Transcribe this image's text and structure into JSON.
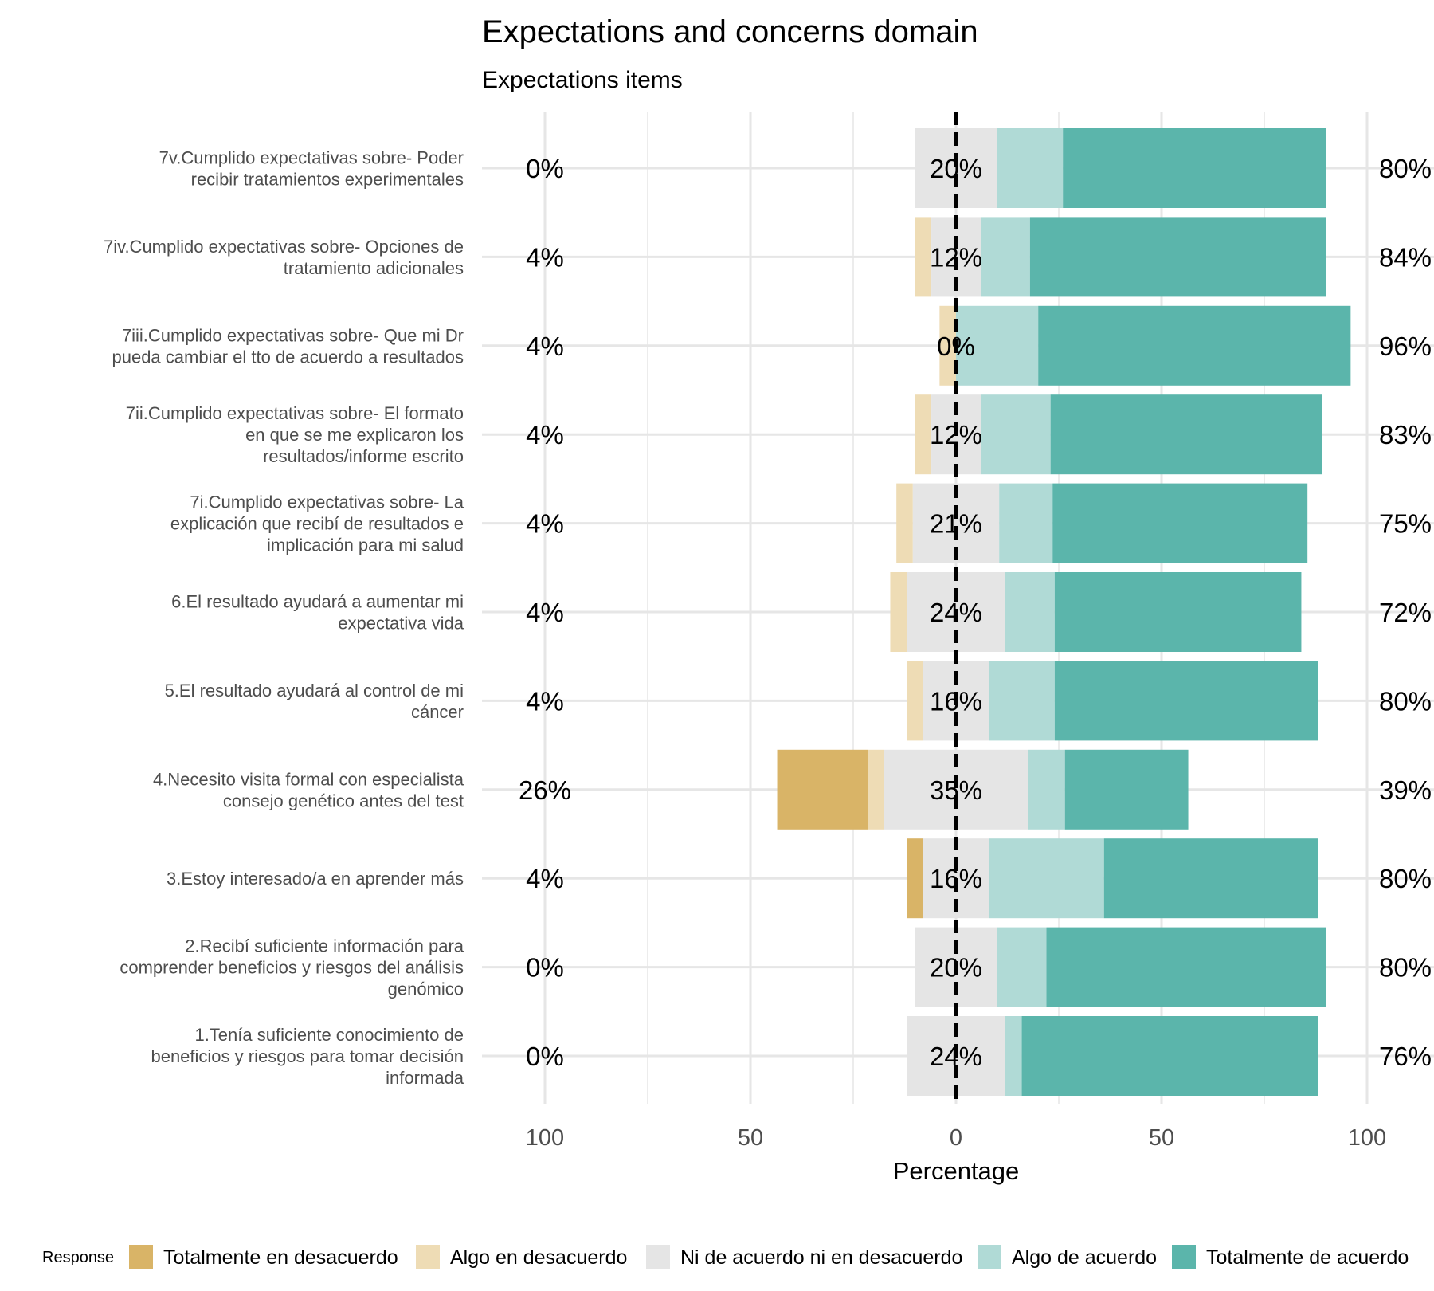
{
  "chart_data": {
    "type": "bar",
    "orientation": "horizontal-diverging-stacked",
    "title": "Expectations and concerns domain",
    "subtitle": "Expectations items",
    "xlabel": "Percentage",
    "xlim": [
      -100,
      100
    ],
    "x_ticks": [
      -100,
      -50,
      0,
      50,
      100
    ],
    "x_tick_labels": [
      "100",
      "50",
      "0",
      "50",
      "100"
    ],
    "grid": true,
    "legend_position": "bottom",
    "legend_title": "Response",
    "series": [
      {
        "name": "Totalmente en desacuerdo",
        "color": "#D9B467"
      },
      {
        "name": "Algo en desacuerdo",
        "color": "#EEDCB5"
      },
      {
        "name": "Ni de acuerdo ni en desacuerdo",
        "color": "#E5E5E5"
      },
      {
        "name": "Algo de acuerdo",
        "color": "#B0DAD6"
      },
      {
        "name": "Totalmente de acuerdo",
        "color": "#5BB5AB"
      }
    ],
    "categories": [
      "7v.Cumplido expectativas sobre- Poder recibir tratamientos experimentales",
      "7iv.Cumplido expectativas sobre- Opciones de tratamiento adicionales",
      "7iii.Cumplido expectativas sobre- Que mi Dr pueda cambiar el tto de acuerdo a resultados",
      "7ii.Cumplido expectativas sobre- El formato en que se me explicaron los resultados/informe escrito",
      "7i.Cumplido expectativas sobre- La explicación que recibí de resultados e implicación para mi salud",
      "6.El resultado ayudará a aumentar mi expectativa vida",
      "5.El resultado ayudará al control de mi cáncer",
      "4.Necesito visita formal con especialista consejo genético antes del test",
      "3.Estoy interesado/a en aprender más",
      "2.Recibí suficiente información para comprender beneficios y riesgos del análisis genómico",
      "1.Tenía suficiente conocimiento de beneficios y riesgos para tomar decisión informada"
    ],
    "category_label_lines": [
      [
        "7v.Cumplido expectativas sobre- Poder",
        "recibir tratamientos experimentales"
      ],
      [
        "7iv.Cumplido expectativas sobre- Opciones de",
        "tratamiento adicionales"
      ],
      [
        "7iii.Cumplido expectativas sobre- Que mi Dr",
        "pueda cambiar el tto de acuerdo a resultados"
      ],
      [
        "7ii.Cumplido expectativas sobre- El formato",
        "en que se me explicaron los",
        "resultados/informe escrito"
      ],
      [
        "7i.Cumplido expectativas sobre- La",
        "explicación que recibí de resultados e",
        "implicación para mi salud"
      ],
      [
        "6.El resultado ayudará a aumentar mi",
        "expectativa vida"
      ],
      [
        "5.El resultado ayudará al control de mi",
        "cáncer"
      ],
      [
        "4.Necesito visita formal con especialista",
        "consejo genético antes del test"
      ],
      [
        "3.Estoy interesado/a en aprender más"
      ],
      [
        "2.Recibí suficiente información para",
        "comprender beneficios y riesgos del análisis",
        "genómico"
      ],
      [
        "1.Tenía suficiente conocimiento de",
        "beneficios y riesgos para tomar decisión",
        "informada"
      ]
    ],
    "values": [
      [
        0,
        0,
        20,
        16,
        64
      ],
      [
        0,
        4,
        12,
        12,
        72
      ],
      [
        0,
        4,
        0,
        20,
        76
      ],
      [
        0,
        4,
        12,
        17,
        66
      ],
      [
        0,
        4,
        21,
        13,
        62
      ],
      [
        0,
        4,
        24,
        12,
        60
      ],
      [
        0,
        4,
        16,
        16,
        64
      ],
      [
        22,
        4,
        35,
        9,
        30
      ],
      [
        4,
        0,
        16,
        28,
        52
      ],
      [
        0,
        0,
        20,
        12,
        68
      ],
      [
        0,
        0,
        24,
        4,
        72
      ]
    ],
    "left_labels": [
      "0%",
      "4%",
      "4%",
      "4%",
      "4%",
      "4%",
      "4%",
      "26%",
      "4%",
      "0%",
      "0%"
    ],
    "center_labels": [
      "20%",
      "12%",
      "0%",
      "12%",
      "21%",
      "24%",
      "16%",
      "35%",
      "16%",
      "20%",
      "24%"
    ],
    "right_labels": [
      "80%",
      "84%",
      "96%",
      "83%",
      "75%",
      "72%",
      "80%",
      "39%",
      "80%",
      "80%",
      "76%"
    ]
  }
}
